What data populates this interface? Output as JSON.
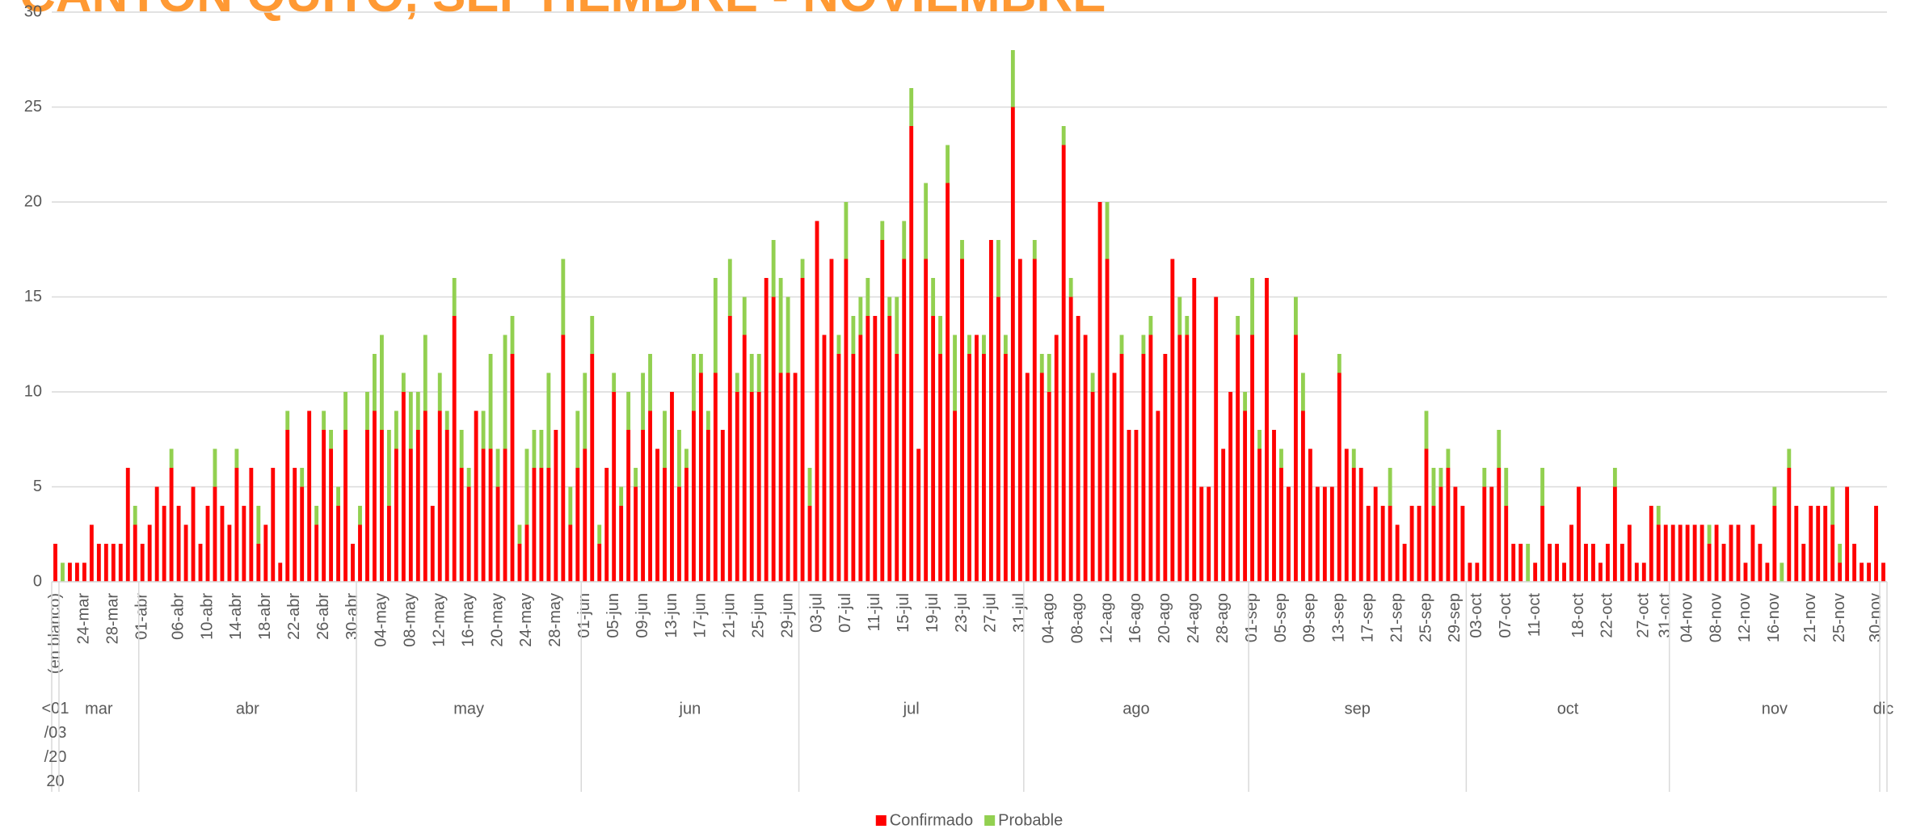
{
  "chart_data": {
    "type": "stacked_bar",
    "title": "CANTON QUITO, SEPTIEMBRE - NOVIEMBRE",
    "categories": [
      "(en blanco)",
      null,
      null,
      null,
      "24-mar",
      null,
      null,
      null,
      "28-mar",
      null,
      null,
      null,
      "01-abr",
      null,
      null,
      null,
      null,
      "06-abr",
      null,
      null,
      null,
      "10-abr",
      null,
      null,
      null,
      "14-abr",
      null,
      null,
      null,
      "18-abr",
      null,
      null,
      null,
      "22-abr",
      null,
      null,
      null,
      "26-abr",
      null,
      null,
      null,
      "30-abr",
      null,
      null,
      null,
      "04-may",
      null,
      null,
      null,
      "08-may",
      null,
      null,
      null,
      "12-may",
      null,
      null,
      null,
      "16-may",
      null,
      null,
      null,
      "20-may",
      null,
      null,
      null,
      "24-may",
      null,
      null,
      null,
      "28-may",
      null,
      null,
      null,
      "01-jun",
      null,
      null,
      null,
      "05-jun",
      null,
      null,
      null,
      "09-jun",
      null,
      null,
      null,
      "13-jun",
      null,
      null,
      null,
      "17-jun",
      null,
      null,
      null,
      "21-jun",
      null,
      null,
      null,
      "25-jun",
      null,
      null,
      null,
      "29-jun",
      null,
      null,
      null,
      "03-jul",
      null,
      null,
      null,
      "07-jul",
      null,
      null,
      null,
      "11-jul",
      null,
      null,
      null,
      "15-jul",
      null,
      null,
      null,
      "19-jul",
      null,
      null,
      null,
      "23-jul",
      null,
      null,
      null,
      "27-jul",
      null,
      null,
      null,
      "31-jul",
      null,
      null,
      null,
      "04-ago",
      null,
      null,
      null,
      "08-ago",
      null,
      null,
      null,
      "12-ago",
      null,
      null,
      null,
      "16-ago",
      null,
      null,
      null,
      "20-ago",
      null,
      null,
      null,
      "24-ago",
      null,
      null,
      null,
      "28-ago",
      null,
      null,
      null,
      "01-sep",
      null,
      null,
      null,
      "05-sep",
      null,
      null,
      null,
      "09-sep",
      null,
      null,
      null,
      "13-sep",
      null,
      null,
      null,
      "17-sep",
      null,
      null,
      null,
      "21-sep",
      null,
      null,
      null,
      "25-sep",
      null,
      null,
      null,
      "29-sep",
      null,
      null,
      "03-oct",
      null,
      null,
      null,
      "07-oct",
      null,
      null,
      null,
      "11-oct",
      null,
      null,
      null,
      null,
      null,
      "18-oct",
      null,
      null,
      null,
      "22-oct",
      null,
      null,
      null,
      null,
      "27-oct",
      null,
      null,
      "31-oct",
      null,
      null,
      "04-nov",
      null,
      null,
      null,
      "08-nov",
      null,
      null,
      null,
      "12-nov",
      null,
      null,
      null,
      "16-nov",
      null,
      null,
      null,
      null,
      "21-nov",
      null,
      null,
      null,
      "25-nov",
      null,
      null,
      null,
      null,
      "30-nov",
      null
    ],
    "month_groups": [
      {
        "label": "<01/03/2020",
        "span": 1
      },
      {
        "label": "mar",
        "span": 11
      },
      {
        "label": "abr",
        "span": 30
      },
      {
        "label": "may",
        "span": 31
      },
      {
        "label": "jun",
        "span": 30
      },
      {
        "label": "jul",
        "span": 31
      },
      {
        "label": "ago",
        "span": 31
      },
      {
        "label": "sep",
        "span": 30
      },
      {
        "label": "oct",
        "span": 28
      },
      {
        "label": "nov",
        "span": 29
      },
      {
        "label": "dic",
        "span": 1
      }
    ],
    "series": [
      {
        "name": "Confirmado",
        "color": "#ff0000",
        "values": [
          2,
          0,
          1,
          1,
          1,
          3,
          2,
          2,
          2,
          2,
          6,
          3,
          2,
          3,
          5,
          4,
          6,
          4,
          3,
          5,
          2,
          4,
          5,
          4,
          3,
          6,
          4,
          6,
          2,
          3,
          6,
          1,
          8,
          6,
          5,
          9,
          3,
          8,
          7,
          4,
          8,
          2,
          3,
          8,
          9,
          8,
          4,
          7,
          10,
          7,
          8,
          9,
          4,
          9,
          8,
          14,
          6,
          5,
          9,
          7,
          7,
          5,
          7,
          12,
          2,
          3,
          6,
          6,
          6,
          8,
          13,
          3,
          6,
          7,
          12,
          2,
          6,
          10,
          4,
          8,
          5,
          8,
          9,
          7,
          6,
          10,
          5,
          6,
          9,
          11,
          8,
          11,
          8,
          14,
          10,
          13,
          10,
          10,
          16,
          15,
          11,
          11,
          11,
          16,
          4,
          19,
          13,
          17,
          12,
          17,
          12,
          13,
          14,
          14,
          18,
          14,
          12,
          17,
          24,
          7,
          17,
          14,
          12,
          21,
          9,
          17,
          12,
          13,
          12,
          18,
          15,
          12,
          25,
          17,
          11,
          17,
          11,
          10,
          13,
          23,
          15,
          14,
          13,
          10,
          20,
          17,
          11,
          12,
          8,
          8,
          12,
          13,
          9,
          12,
          17,
          13,
          13,
          16,
          5,
          5,
          15,
          7,
          10,
          13,
          9,
          13,
          7,
          16,
          8,
          6,
          5,
          13,
          9,
          7,
          5,
          5,
          5,
          11,
          7,
          6,
          6,
          4,
          5,
          4,
          4,
          3,
          2,
          4,
          4,
          7,
          4,
          5,
          6,
          5,
          4,
          1,
          1,
          5,
          5,
          6,
          4,
          2,
          2,
          0,
          1,
          4,
          2,
          2,
          1,
          3,
          5,
          2,
          2,
          1,
          2,
          5,
          2,
          3,
          1,
          1,
          4,
          3,
          3,
          3,
          3,
          3,
          3,
          3,
          2,
          3,
          2,
          3,
          3,
          1,
          3,
          2,
          1,
          4,
          0,
          6,
          4,
          2,
          4,
          4,
          4,
          3,
          1,
          5,
          2,
          1,
          1,
          4,
          1
        ]
      },
      {
        "name": "Probable",
        "color": "#92d050",
        "values": [
          0,
          1,
          0,
          0,
          0,
          0,
          0,
          0,
          0,
          0,
          0,
          1,
          0,
          0,
          0,
          0,
          1,
          0,
          0,
          0,
          0,
          0,
          2,
          0,
          0,
          1,
          0,
          0,
          2,
          0,
          0,
          0,
          1,
          0,
          1,
          0,
          1,
          1,
          1,
          1,
          2,
          0,
          1,
          2,
          3,
          5,
          4,
          2,
          1,
          3,
          2,
          4,
          0,
          2,
          1,
          2,
          2,
          1,
          0,
          2,
          5,
          2,
          6,
          2,
          1,
          4,
          2,
          2,
          5,
          0,
          4,
          2,
          3,
          4,
          2,
          1,
          0,
          1,
          1,
          2,
          1,
          3,
          3,
          0,
          3,
          0,
          3,
          1,
          3,
          1,
          1,
          5,
          0,
          3,
          1,
          2,
          2,
          2,
          0,
          3,
          5,
          4,
          0,
          1,
          2,
          0,
          0,
          0,
          1,
          3,
          2,
          2,
          2,
          0,
          1,
          1,
          3,
          2,
          2,
          0,
          4,
          2,
          2,
          2,
          4,
          1,
          1,
          0,
          1,
          0,
          3,
          1,
          3,
          0,
          0,
          1,
          1,
          2,
          0,
          1,
          1,
          0,
          0,
          1,
          0,
          3,
          0,
          1,
          0,
          0,
          1,
          1,
          0,
          0,
          0,
          2,
          1,
          0,
          0,
          0,
          0,
          0,
          0,
          1,
          1,
          3,
          1,
          0,
          0,
          1,
          0,
          2,
          2,
          0,
          0,
          0,
          0,
          1,
          0,
          1,
          0,
          0,
          0,
          0,
          2,
          0,
          0,
          0,
          0,
          2,
          2,
          1,
          1,
          0,
          0,
          0,
          0,
          1,
          0,
          2,
          2,
          0,
          0,
          2,
          0,
          2,
          0,
          0,
          0,
          0,
          0,
          0,
          0,
          0,
          0,
          1,
          0,
          0,
          0,
          0,
          0,
          1,
          0,
          0,
          0,
          0,
          0,
          0,
          1,
          0,
          0,
          0,
          0,
          0,
          0,
          0,
          0,
          1,
          1,
          1,
          0,
          0,
          0,
          0,
          0,
          2,
          1,
          0,
          0,
          0,
          0,
          0,
          0
        ]
      }
    ],
    "ylim": [
      0,
      30
    ],
    "yticks": [
      0,
      5,
      10,
      15,
      20,
      25,
      30
    ],
    "grid": true,
    "legend": "bottom"
  }
}
